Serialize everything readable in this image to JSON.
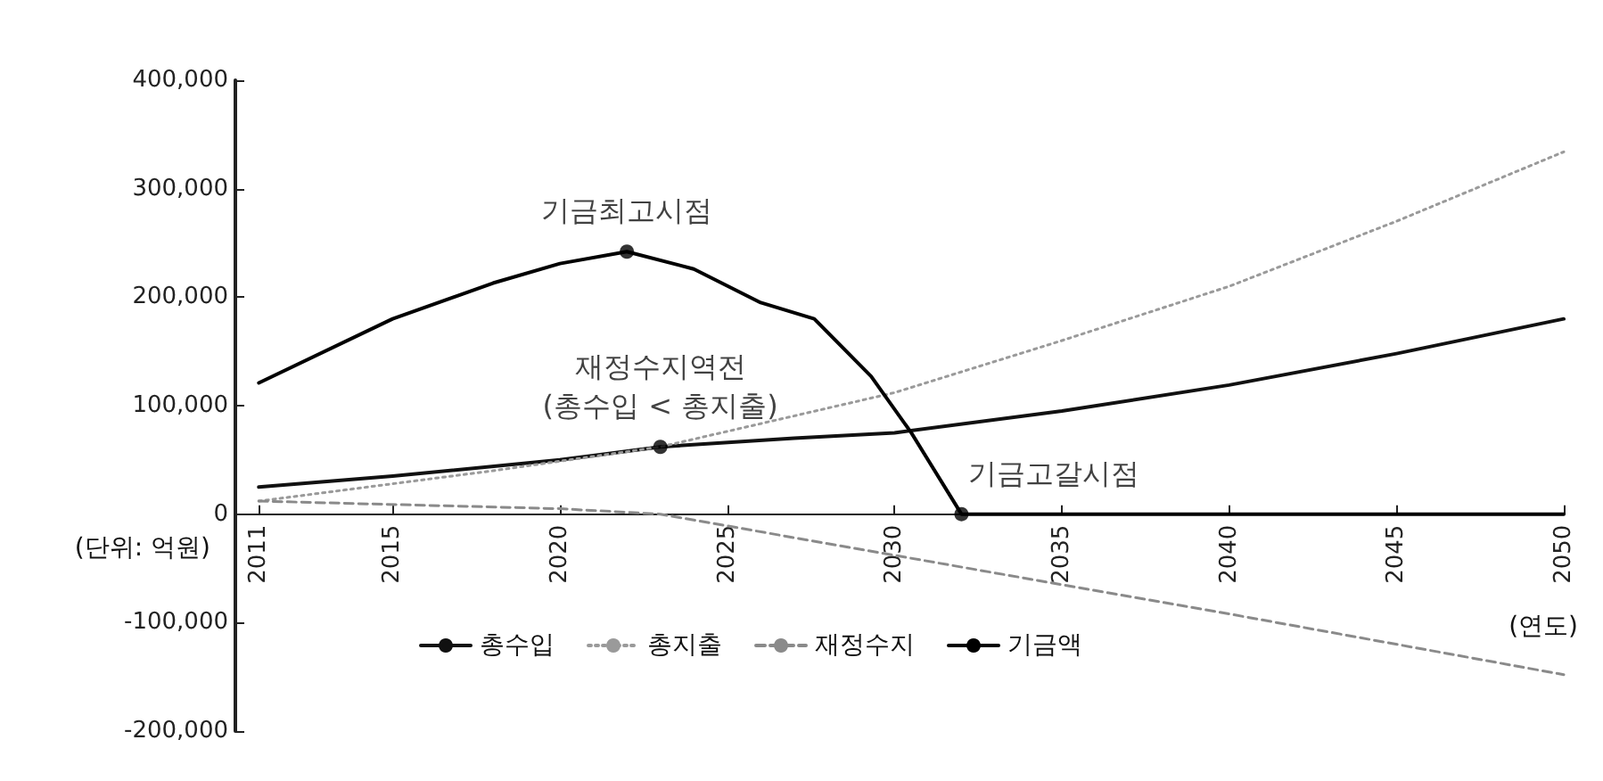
{
  "chart_data": {
    "type": "line",
    "xlabel": "(연도)",
    "ylabel": "(단위: 억원)",
    "xlim": [
      2010.3,
      2050
    ],
    "xticks": [
      2011,
      2015,
      2020,
      2025,
      2030,
      2035,
      2040,
      2045,
      2050
    ],
    "ylim": [
      -200000,
      400000
    ],
    "yticks": [
      {
        "value": -200000,
        "label": "-200,000"
      },
      {
        "value": -100000,
        "label": "-100,000"
      },
      0,
      {
        "value": 100000,
        "label": "100,000"
      },
      {
        "value": 200000,
        "label": "200,000"
      },
      {
        "value": 300000,
        "label": "300,000"
      },
      {
        "value": 400000,
        "label": "400,000"
      }
    ],
    "series": [
      {
        "name": "총수입",
        "color": "#111111",
        "line_style": "solid",
        "x": [
          2011,
          2015,
          2020,
          2023,
          2027,
          2030,
          2035,
          2040,
          2045,
          2050
        ],
        "values": [
          25000,
          35000,
          50000,
          62000,
          70000,
          75000,
          95000,
          119000,
          148000,
          180000
        ]
      },
      {
        "name": "총지출",
        "color": "#9a9a9a",
        "line_style": "dotted",
        "x": [
          2011,
          2018,
          2023,
          2030,
          2035,
          2040,
          2045,
          2050
        ],
        "values": [
          12000,
          40000,
          62000,
          112000,
          160000,
          210000,
          270000,
          334000
        ]
      },
      {
        "name": "재정수지",
        "color": "#8a8a8a",
        "line_style": "dashed",
        "x": [
          2011,
          2020,
          2023,
          2030,
          2040,
          2050
        ],
        "values": [
          12000,
          5000,
          0,
          -38000,
          -92000,
          -148000
        ]
      },
      {
        "name": "기금액",
        "color": "#000000",
        "line_style": "solid",
        "x": [
          2011,
          2015,
          2018,
          2020,
          2022,
          2024,
          2026,
          2027.6,
          2029.3,
          2030.5,
          2032,
          2040,
          2050
        ],
        "values": [
          121000,
          180000,
          213000,
          231000,
          242000,
          226000,
          195000,
          180000,
          127000,
          75000,
          0,
          0,
          0
        ]
      }
    ],
    "annotations": [
      {
        "text": "기금최고시점",
        "x": 2022,
        "y": 242000
      },
      {
        "text": "재정수지역전\n(총수입 < 총지출)",
        "x": 2023,
        "y": 62000
      },
      {
        "text": "기금고갈시점",
        "x": 2032,
        "y": 0
      }
    ],
    "legend": "bottom",
    "grid": false,
    "marker": "none"
  }
}
